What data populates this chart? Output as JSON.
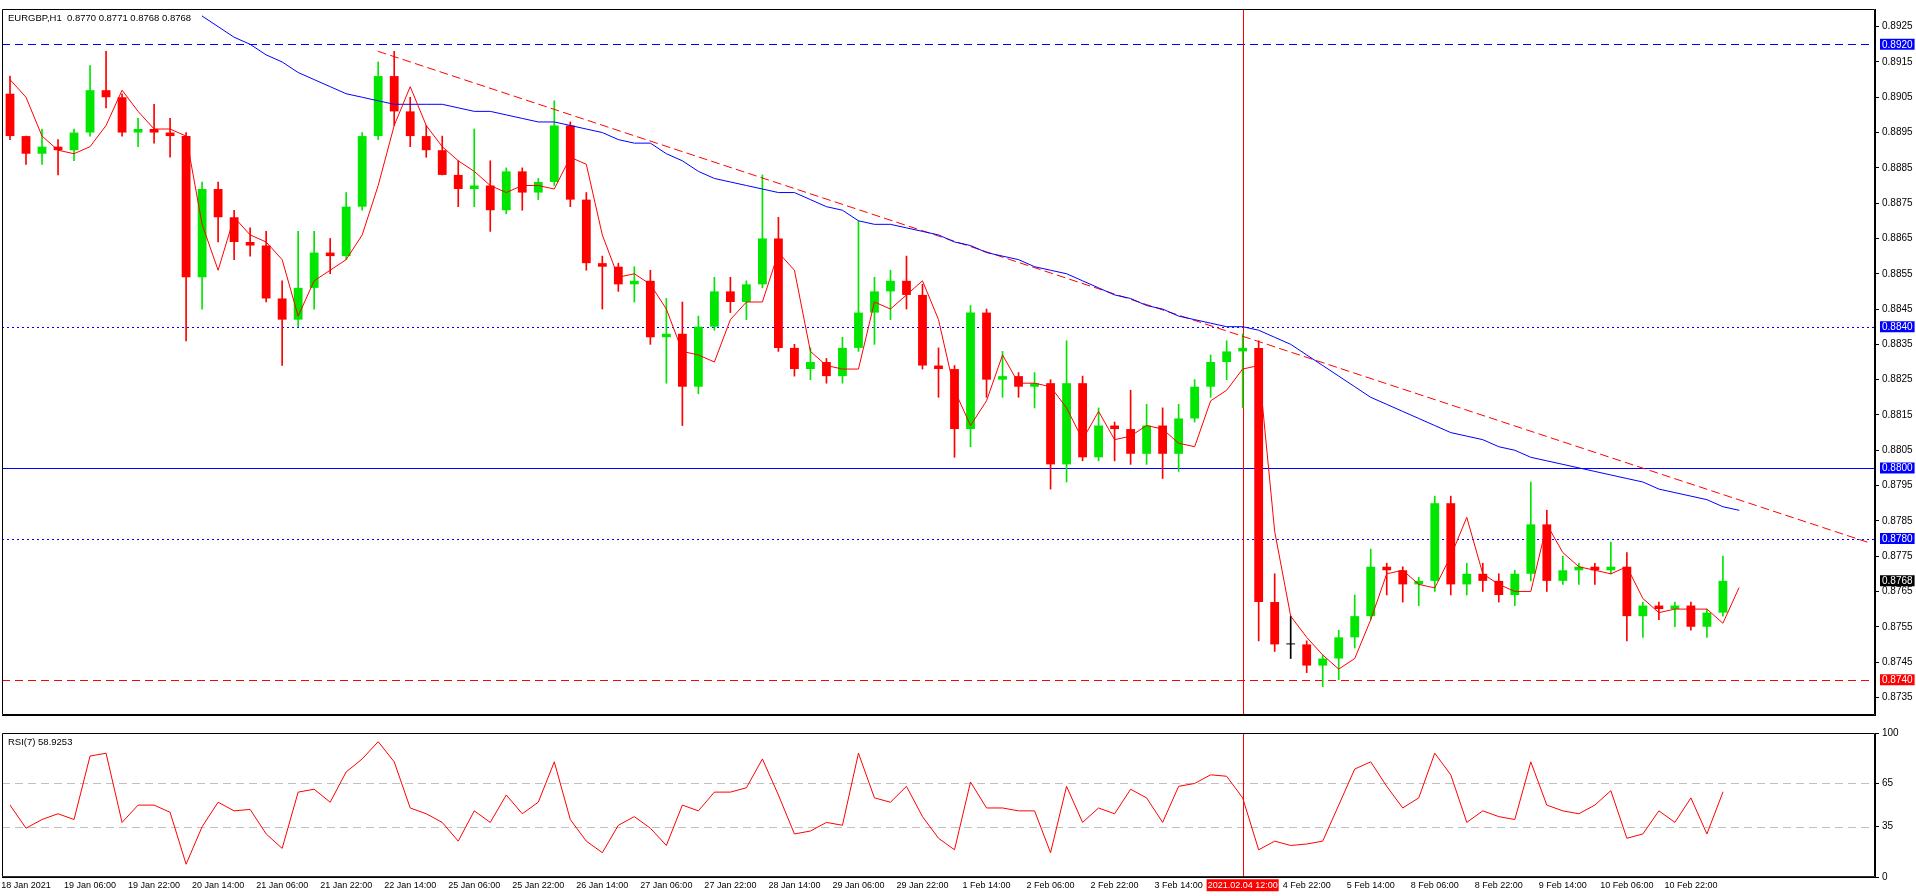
{
  "chart_data": [
    {
      "type": "candlestick",
      "title": "EURGBP,H1  0.8770 0.8771 0.8768 0.8768",
      "tick_labels": "y",
      "categories": [
        null,
        "18 Jan 2021",
        null,
        null,
        null,
        "19 Jan 06:00",
        null,
        null,
        null,
        "19 Jan 22:00",
        null,
        null,
        null,
        "20 Jan 14:00",
        null,
        null,
        null,
        "21 Jan 06:00",
        null,
        null,
        null,
        "21 Jan 22:00",
        null,
        null,
        null,
        "22 Jan 14:00",
        null,
        null,
        null,
        "25 Jan 06:00",
        null,
        null,
        null,
        "25 Jan 22:00",
        null,
        null,
        null,
        "26 Jan 14:00",
        null,
        null,
        null,
        "27 Jan 06:00",
        null,
        null,
        null,
        "27 Jan 22:00",
        null,
        null,
        null,
        "28 Jan 14:00",
        null,
        null,
        null,
        "29 Jan 06:00",
        null,
        null,
        null,
        "29 Jan 22:00",
        null,
        null,
        null,
        "1 Feb 14:00",
        null,
        null,
        null,
        "2 Feb 06:00",
        null,
        null,
        null,
        "2 Feb 22:00",
        null,
        null,
        null,
        "3 Feb 14:00",
        null,
        null,
        null,
        "2021.02.04 12:00",
        null,
        null,
        null,
        "4 Feb 22:00",
        null,
        null,
        null,
        "5 Feb 14:00",
        null,
        null,
        null,
        "8 Feb 06:00",
        null,
        null,
        null,
        "8 Feb 22:00",
        null,
        null,
        null,
        "9 Feb 14:00",
        null,
        null,
        null,
        "10 Feb 06:00",
        null,
        null,
        null,
        "10 Feb 22:00",
        null,
        null,
        null,
        null,
        null,
        null,
        null,
        null,
        null,
        null,
        null
      ],
      "ohlc": [
        [
          0.8906,
          0.8911,
          0.8893,
          0.8894
        ],
        [
          0.8894,
          0.8894,
          0.8886,
          0.8889
        ],
        [
          0.8889,
          0.8896,
          0.8886,
          0.8891
        ],
        [
          0.8891,
          0.8893,
          0.8883,
          0.889
        ],
        [
          0.889,
          0.8896,
          0.8887,
          0.8895
        ],
        [
          0.8895,
          0.8914,
          0.8894,
          0.8907
        ],
        [
          0.8907,
          0.8918,
          0.8902,
          0.8905
        ],
        [
          0.8905,
          0.8906,
          0.8894,
          0.8895
        ],
        [
          0.8895,
          0.8899,
          0.8891,
          0.8896
        ],
        [
          0.8896,
          0.8903,
          0.8892,
          0.8895
        ],
        [
          0.8895,
          0.8899,
          0.8888,
          0.8894
        ],
        [
          0.8894,
          0.8895,
          0.8836,
          0.8854
        ],
        [
          0.8854,
          0.8881,
          0.8845,
          0.8879
        ],
        [
          0.8879,
          0.8881,
          0.8864,
          0.8871
        ],
        [
          0.8871,
          0.8873,
          0.8859,
          0.8864
        ],
        [
          0.8864,
          0.8868,
          0.886,
          0.8863
        ],
        [
          0.8863,
          0.8867,
          0.8847,
          0.8848
        ],
        [
          0.8848,
          0.8853,
          0.8829,
          0.8842
        ],
        [
          0.8842,
          0.8867,
          0.884,
          0.8851
        ],
        [
          0.8851,
          0.8867,
          0.8845,
          0.8861
        ],
        [
          0.8861,
          0.8865,
          0.8855,
          0.886
        ],
        [
          0.886,
          0.8878,
          0.8859,
          0.8874
        ],
        [
          0.8874,
          0.8895,
          0.8873,
          0.8894
        ],
        [
          0.8894,
          0.8915,
          0.8893,
          0.8911
        ],
        [
          0.8911,
          0.8918,
          0.8897,
          0.8901
        ],
        [
          0.8901,
          0.8905,
          0.8891,
          0.8894
        ],
        [
          0.8894,
          0.8897,
          0.8888,
          0.889
        ],
        [
          0.889,
          0.8894,
          0.8883,
          0.8883
        ],
        [
          0.8883,
          0.8887,
          0.8874,
          0.8879
        ],
        [
          0.8879,
          0.8896,
          0.8874,
          0.888
        ],
        [
          0.888,
          0.8887,
          0.8867,
          0.8873
        ],
        [
          0.8873,
          0.8885,
          0.8872,
          0.8884
        ],
        [
          0.8884,
          0.8885,
          0.8873,
          0.8878
        ],
        [
          0.8878,
          0.8882,
          0.8876,
          0.8881
        ],
        [
          0.8881,
          0.8904,
          0.888,
          0.8897
        ],
        [
          0.8897,
          0.8898,
          0.8874,
          0.8876
        ],
        [
          0.8876,
          0.8878,
          0.8856,
          0.8858
        ],
        [
          0.8858,
          0.886,
          0.8845,
          0.8857
        ],
        [
          0.8857,
          0.8858,
          0.885,
          0.8852
        ],
        [
          0.8852,
          0.8857,
          0.8847,
          0.8853
        ],
        [
          0.8853,
          0.8856,
          0.8835,
          0.8837
        ],
        [
          0.8837,
          0.8848,
          0.8824,
          0.8838
        ],
        [
          0.8838,
          0.8847,
          0.8812,
          0.8823
        ],
        [
          0.8823,
          0.8843,
          0.8821,
          0.884
        ],
        [
          0.884,
          0.8854,
          0.8839,
          0.885
        ],
        [
          0.885,
          0.8854,
          0.8844,
          0.8847
        ],
        [
          0.8847,
          0.8853,
          0.8842,
          0.8852
        ],
        [
          0.8852,
          0.8883,
          0.8851,
          0.8865
        ],
        [
          0.8865,
          0.8871,
          0.8833,
          0.8834
        ],
        [
          0.8834,
          0.8835,
          0.8826,
          0.8828
        ],
        [
          0.8828,
          0.8834,
          0.8825,
          0.883
        ],
        [
          0.883,
          0.8831,
          0.8824,
          0.8826
        ],
        [
          0.8826,
          0.8837,
          0.8824,
          0.8834
        ],
        [
          0.8834,
          0.887,
          0.8833,
          0.8844
        ],
        [
          0.8844,
          0.8854,
          0.8835,
          0.885
        ],
        [
          0.885,
          0.8856,
          0.8842,
          0.8853
        ],
        [
          0.8853,
          0.886,
          0.8845,
          0.8849
        ],
        [
          0.8849,
          0.8852,
          0.8828,
          0.8829
        ],
        [
          0.8829,
          0.8834,
          0.882,
          0.8828
        ],
        [
          0.8828,
          0.8829,
          0.8803,
          0.8811
        ],
        [
          0.8811,
          0.8846,
          0.8806,
          0.8844
        ],
        [
          0.8844,
          0.8845,
          0.882,
          0.8825
        ],
        [
          0.8825,
          0.8833,
          0.882,
          0.8826
        ],
        [
          0.8826,
          0.8827,
          0.882,
          0.8823
        ],
        [
          0.8823,
          0.8827,
          0.8817,
          0.8824
        ],
        [
          0.8824,
          0.8825,
          0.8794,
          0.8801
        ],
        [
          0.8801,
          0.8836,
          0.8796,
          0.8824
        ],
        [
          0.8824,
          0.8826,
          0.8802,
          0.8803
        ],
        [
          0.8803,
          0.8817,
          0.8802,
          0.8812
        ],
        [
          0.8812,
          0.8813,
          0.8802,
          0.8811
        ],
        [
          0.8811,
          0.8822,
          0.8801,
          0.8804
        ],
        [
          0.8804,
          0.8818,
          0.8801,
          0.8812
        ],
        [
          0.8812,
          0.8817,
          0.8797,
          0.8804
        ],
        [
          0.8804,
          0.8818,
          0.8799,
          0.8814
        ],
        [
          0.8814,
          0.8825,
          0.8813,
          0.8823
        ],
        [
          0.8823,
          0.8832,
          0.882,
          0.883
        ],
        [
          0.883,
          0.8836,
          0.8825,
          0.8833
        ],
        [
          0.8833,
          0.8838,
          0.8817,
          0.8834
        ],
        [
          0.8834,
          0.8836,
          0.8751,
          0.8762
        ],
        [
          0.8762,
          0.877,
          0.8748,
          0.875
        ],
        [
          0.875,
          0.8758,
          0.8746,
          0.875
        ],
        [
          0.875,
          0.8751,
          0.8742,
          0.8744
        ],
        [
          0.8744,
          0.8747,
          0.8738,
          0.8746
        ],
        [
          0.8746,
          0.8754,
          0.874,
          0.8752
        ],
        [
          0.8752,
          0.8764,
          0.8749,
          0.8758
        ],
        [
          0.8758,
          0.8777,
          0.8757,
          0.8772
        ],
        [
          0.8772,
          0.8773,
          0.8764,
          0.8771
        ],
        [
          0.8771,
          0.8772,
          0.8762,
          0.8767
        ],
        [
          0.8767,
          0.8769,
          0.8761,
          0.8768
        ],
        [
          0.8768,
          0.8792,
          0.8765,
          0.879
        ],
        [
          0.879,
          0.8792,
          0.8764,
          0.8767
        ],
        [
          0.8767,
          0.8773,
          0.8764,
          0.877
        ],
        [
          0.877,
          0.8773,
          0.8765,
          0.8768
        ],
        [
          0.8768,
          0.877,
          0.8762,
          0.8764
        ],
        [
          0.8764,
          0.8771,
          0.8761,
          0.877
        ],
        [
          0.877,
          0.8796,
          0.8768,
          0.8784
        ],
        [
          0.8784,
          0.8788,
          0.8765,
          0.8768
        ],
        [
          0.8768,
          0.8775,
          0.8767,
          0.8771
        ],
        [
          0.8771,
          0.8773,
          0.8767,
          0.8772
        ],
        [
          0.8772,
          0.8773,
          0.8767,
          0.8771
        ],
        [
          0.8771,
          0.8779,
          0.877,
          0.8772
        ],
        [
          0.8772,
          0.8776,
          0.8751,
          0.8758
        ],
        [
          0.8758,
          0.8762,
          0.8752,
          0.8761
        ],
        [
          0.8761,
          0.8762,
          0.8757,
          0.876
        ],
        [
          0.876,
          0.8762,
          0.8755,
          0.8761
        ],
        [
          0.8761,
          0.8762,
          0.8754,
          0.8755
        ],
        [
          0.8755,
          0.876,
          0.8752,
          0.8759
        ],
        [
          0.8759,
          0.8775,
          0.8758,
          0.8768
        ],
        null,
        null,
        null,
        null,
        null,
        null,
        null,
        null,
        null
      ],
      "colors": [
        "#ff0000",
        "#ff0000",
        "#00e600",
        "#ff0000",
        "#00e600",
        "#00e600",
        "#ff0000",
        "#ff0000",
        "#00e600",
        "#ff0000",
        "#ff0000",
        "#ff0000",
        "#00e600",
        "#ff0000",
        "#ff0000",
        "#ff0000",
        "#ff0000",
        "#ff0000",
        "#00e600",
        "#00e600",
        "#ff0000",
        "#00e600",
        "#00e600",
        "#00e600",
        "#ff0000",
        "#ff0000",
        "#ff0000",
        "#ff0000",
        "#ff0000",
        "#00e600",
        "#ff0000",
        "#00e600",
        "#ff0000",
        "#00e600",
        "#00e600",
        "#ff0000",
        "#ff0000",
        "#ff0000",
        "#ff0000",
        "#00e600",
        "#ff0000",
        "#00e600",
        "#ff0000",
        "#00e600",
        "#00e600",
        "#ff0000",
        "#00e600",
        "#00e600",
        "#ff0000",
        "#ff0000",
        "#00e600",
        "#ff0000",
        "#00e600",
        "#00e600",
        "#00e600",
        "#00e600",
        "#ff0000",
        "#ff0000",
        "#ff0000",
        "#ff0000",
        "#00e600",
        "#ff0000",
        "#00e600",
        "#ff0000",
        "#00e600",
        "#ff0000",
        "#00e600",
        "#ff0000",
        "#00e600",
        "#ff0000",
        "#ff0000",
        "#00e600",
        "#ff0000",
        "#00e600",
        "#00e600",
        "#00e600",
        "#00e600",
        "#00e600",
        "#ff0000",
        "#ff0000",
        "#000000",
        "#ff0000",
        "#00e600",
        "#00e600",
        "#00e600",
        "#00e600",
        "#ff0000",
        "#ff0000",
        "#00e600",
        "#00e600",
        "#ff0000",
        "#00e600",
        "#ff0000",
        "#ff0000",
        "#00e600",
        "#00e600",
        "#ff0000",
        "#00e600",
        "#00e600",
        "#ff0000",
        "#00e600",
        "#ff0000",
        "#00e600",
        "#ff0000",
        "#00e600",
        "#ff0000",
        "#00e600",
        "#00e600",
        null,
        null,
        null,
        null,
        null,
        null,
        null,
        null,
        null
      ],
      "series": [
        {
          "type": "line",
          "color": "#ff0000",
          "values": [
            0.891,
            0.8905,
            0.8894,
            0.889,
            0.8889,
            0.8891,
            0.8897,
            0.8907,
            0.8901,
            0.8896,
            0.8896,
            0.8894,
            0.8869,
            0.8856,
            0.8871,
            0.8866,
            0.8864,
            0.8859,
            0.8843,
            0.8853,
            0.8856,
            0.8859,
            0.8866,
            0.888,
            0.8897,
            0.8908,
            0.8897,
            0.8891,
            0.8887,
            0.8884,
            0.888,
            0.8878,
            0.888,
            0.888,
            0.8879,
            0.8888,
            0.8886,
            0.8866,
            0.8854,
            0.8855,
            0.8852,
            0.8845,
            0.8833,
            0.8832,
            0.883,
            0.8842,
            0.8847,
            0.8847,
            0.8861,
            0.8856,
            0.8833,
            0.8829,
            0.8828,
            0.8828,
            0.8847,
            0.8845,
            0.8849,
            0.8853,
            0.8842,
            0.8822,
            0.8812,
            0.8819,
            0.8832,
            0.8824,
            0.8824,
            0.8823,
            0.8817,
            0.8808,
            0.8816,
            0.8808,
            0.8809,
            0.8812,
            0.8811,
            0.8807,
            0.8806,
            0.8819,
            0.8822,
            0.8828,
            0.8829,
            0.8782,
            0.8758,
            0.8752,
            0.8747,
            0.8743,
            0.8746,
            0.8757,
            0.877,
            0.8771,
            0.8767,
            0.8766,
            0.8775,
            0.8786,
            0.877,
            0.8767,
            0.8765,
            0.8765,
            0.8784,
            0.8776,
            0.8772,
            0.8771,
            0.877,
            0.8772,
            0.8763,
            0.8759,
            0.876,
            0.876,
            0.876,
            0.8756,
            0.8766,
            null,
            null,
            null,
            null,
            null,
            null,
            null,
            null
          ]
        },
        {
          "type": "line",
          "color": "#0000ff",
          "values": [
            null,
            null,
            null,
            null,
            null,
            null,
            null,
            null,
            null,
            null,
            null,
            null,
            0.8928,
            0.8925,
            0.8922,
            0.892,
            0.8917,
            0.8915,
            0.8912,
            0.891,
            0.8908,
            0.8906,
            0.8905,
            0.8904,
            0.8903,
            0.8903,
            0.8903,
            0.8903,
            0.8902,
            0.8901,
            0.8901,
            0.89,
            0.8899,
            0.8898,
            0.8898,
            0.8897,
            0.8896,
            0.8895,
            0.8893,
            0.8892,
            0.8892,
            0.8889,
            0.8887,
            0.8884,
            0.8882,
            0.8881,
            0.888,
            0.8879,
            0.8878,
            0.8878,
            0.8876,
            0.8874,
            0.8873,
            0.887,
            0.8869,
            0.8869,
            0.8868,
            0.8867,
            0.8866,
            0.8864,
            0.8863,
            0.8861,
            0.886,
            0.8859,
            0.8857,
            0.8856,
            0.8855,
            0.8853,
            0.8851,
            0.8849,
            0.8848,
            0.8846,
            0.8845,
            0.8843,
            0.8842,
            0.8841,
            0.884,
            0.884,
            0.8839,
            0.8837,
            0.8835,
            0.8832,
            0.8829,
            0.8826,
            0.8823,
            0.882,
            0.8818,
            0.8816,
            0.8814,
            0.8812,
            0.881,
            0.8809,
            0.8808,
            0.8806,
            0.8805,
            0.8803,
            0.8802,
            0.8801,
            0.88,
            0.8799,
            0.8798,
            0.8797,
            0.8796,
            0.8794,
            0.8793,
            0.8792,
            0.8791,
            0.8789,
            0.8788,
            null,
            null,
            null,
            null,
            null,
            null,
            null,
            null
          ]
        },
        {
          "type": "line",
          "color": "#ff0000",
          "line_style": "dashed",
          "values": [
            null,
            null,
            null,
            null,
            null,
            null,
            null,
            null,
            null,
            null,
            null,
            null,
            null,
            null,
            null,
            null,
            null,
            null,
            null,
            null,
            null,
            null,
            null,
            0.8918,
            null,
            null,
            null,
            null,
            null,
            null,
            null,
            null,
            null,
            null,
            null,
            null,
            null,
            null,
            null,
            null,
            null,
            null,
            null,
            null,
            null,
            null,
            null,
            null,
            null,
            null,
            null,
            null,
            null,
            null,
            null,
            null,
            null,
            null,
            null,
            null,
            null,
            null,
            null,
            null,
            null,
            null,
            null,
            null,
            null,
            null,
            null,
            null,
            null,
            null,
            null,
            null,
            null,
            null,
            null,
            null,
            null,
            null,
            null,
            null,
            null,
            null,
            null,
            null,
            null,
            null,
            null,
            null,
            null,
            null,
            null,
            null,
            null,
            null,
            null,
            null,
            null,
            null,
            null,
            null,
            null,
            null,
            null,
            null,
            null,
            null,
            null,
            null,
            null,
            null,
            null,
            null,
            0.8779
          ]
        }
      ],
      "ylim": [
        0.873,
        0.893
      ],
      "yticks": [
        0.8735,
        0.8745,
        0.8755,
        0.8765,
        0.8775,
        0.8785,
        0.8795,
        0.8805,
        0.8815,
        0.8825,
        0.8835,
        0.8845,
        0.8855,
        0.8865,
        0.8875,
        0.8885,
        0.8895,
        0.8905,
        0.8915,
        0.8925
      ],
      "ref_lines": [
        {
          "axis": "y",
          "value": 0.892,
          "label": "0.8920",
          "color": "#0000ff",
          "line_style": "dashed"
        },
        {
          "axis": "y",
          "value": 0.884,
          "label": "0.8840",
          "color": "#0000ff",
          "line_style": "dotted"
        },
        {
          "axis": "y",
          "value": 0.88,
          "label": "0.8800",
          "color": "#0000ff",
          "line_style": "solid"
        },
        {
          "axis": "y",
          "value": 0.878,
          "label": "0.8780",
          "color": "#0000ff",
          "line_style": "dotted"
        },
        {
          "axis": "y",
          "value": 0.874,
          "label": "0.8740",
          "color": "#ff0000",
          "line_style": "dashed"
        },
        {
          "axis": "x",
          "value": "2021.02.04 12:00",
          "color": "#ff0000",
          "line_style": "solid"
        }
      ],
      "annotations": [
        "0.8768"
      ]
    },
    {
      "type": "line",
      "title": "RSI(7) 58.9253",
      "categories": [
        null,
        "18 Jan 2021",
        null,
        null,
        null,
        "19 Jan 06:00",
        null,
        null,
        null,
        "19 Jan 22:00",
        null,
        null,
        null,
        "20 Jan 14:00",
        null,
        null,
        null,
        "21 Jan 06:00",
        null,
        null,
        null,
        "21 Jan 22:00",
        null,
        null,
        null,
        "22 Jan 14:00",
        null,
        null,
        null,
        "25 Jan 06:00",
        null,
        null,
        null,
        "25 Jan 22:00",
        null,
        null,
        null,
        "26 Jan 14:00",
        null,
        null,
        null,
        "27 Jan 06:00",
        null,
        null,
        null,
        "27 Jan 22:00",
        null,
        null,
        null,
        "28 Jan 14:00",
        null,
        null,
        null,
        "29 Jan 06:00",
        null,
        null,
        null,
        "29 Jan 22:00",
        null,
        null,
        null,
        "1 Feb 14:00",
        null,
        null,
        null,
        "2 Feb 06:00",
        null,
        null,
        null,
        "2 Feb 22:00",
        null,
        null,
        null,
        "3 Feb 14:00",
        null,
        null,
        null,
        "2021.02.04 12:00",
        null,
        null,
        null,
        "4 Feb 22:00",
        null,
        null,
        null,
        "5 Feb 14:00",
        null,
        null,
        null,
        "8 Feb 06:00",
        null,
        null,
        null,
        "8 Feb 22:00",
        null,
        null,
        null,
        "9 Feb 14:00",
        null,
        null,
        null,
        "10 Feb 06:00",
        null,
        null,
        null,
        "10 Feb 22:00",
        null,
        null,
        null,
        null,
        null,
        null,
        null,
        null,
        null,
        null,
        null
      ],
      "series": [
        {
          "color": "#ff0000",
          "values": [
            50,
            34,
            40,
            44,
            40,
            84,
            86,
            38,
            50,
            50,
            45,
            9,
            35,
            52,
            46,
            47,
            30,
            20,
            59,
            61,
            52,
            73,
            82,
            94,
            80,
            48,
            44,
            38,
            25,
            46,
            38,
            57,
            44,
            52,
            80,
            40,
            25,
            17,
            36,
            42,
            34,
            22,
            50,
            46,
            59,
            59,
            62,
            82,
            57,
            30,
            32,
            38,
            36,
            86,
            55,
            52,
            63,
            42,
            27,
            19,
            66,
            48,
            48,
            46,
            46,
            17,
            63,
            38,
            48,
            44,
            61,
            55,
            38,
            63,
            65,
            71,
            70,
            55,
            19,
            25,
            22,
            23,
            25,
            50,
            75,
            80,
            63,
            48,
            55,
            86,
            71,
            38,
            46,
            42,
            40,
            80,
            50,
            46,
            44,
            50,
            60,
            27,
            30,
            46,
            38,
            55,
            30,
            59,
            null,
            null,
            null,
            null,
            null,
            null,
            null,
            null,
            null
          ]
        }
      ],
      "ylim": [
        0,
        100
      ],
      "yticks": [
        0,
        35,
        65,
        100
      ],
      "ref_lines": [
        {
          "axis": "y",
          "value": 35,
          "color": "#c0c0c0",
          "line_style": "dashed"
        },
        {
          "axis": "y",
          "value": 65,
          "color": "#c0c0c0",
          "line_style": "dashed"
        },
        {
          "axis": "x",
          "value": "2021.02.04 12:00",
          "color": "#ff0000",
          "line_style": "solid"
        }
      ]
    }
  ]
}
